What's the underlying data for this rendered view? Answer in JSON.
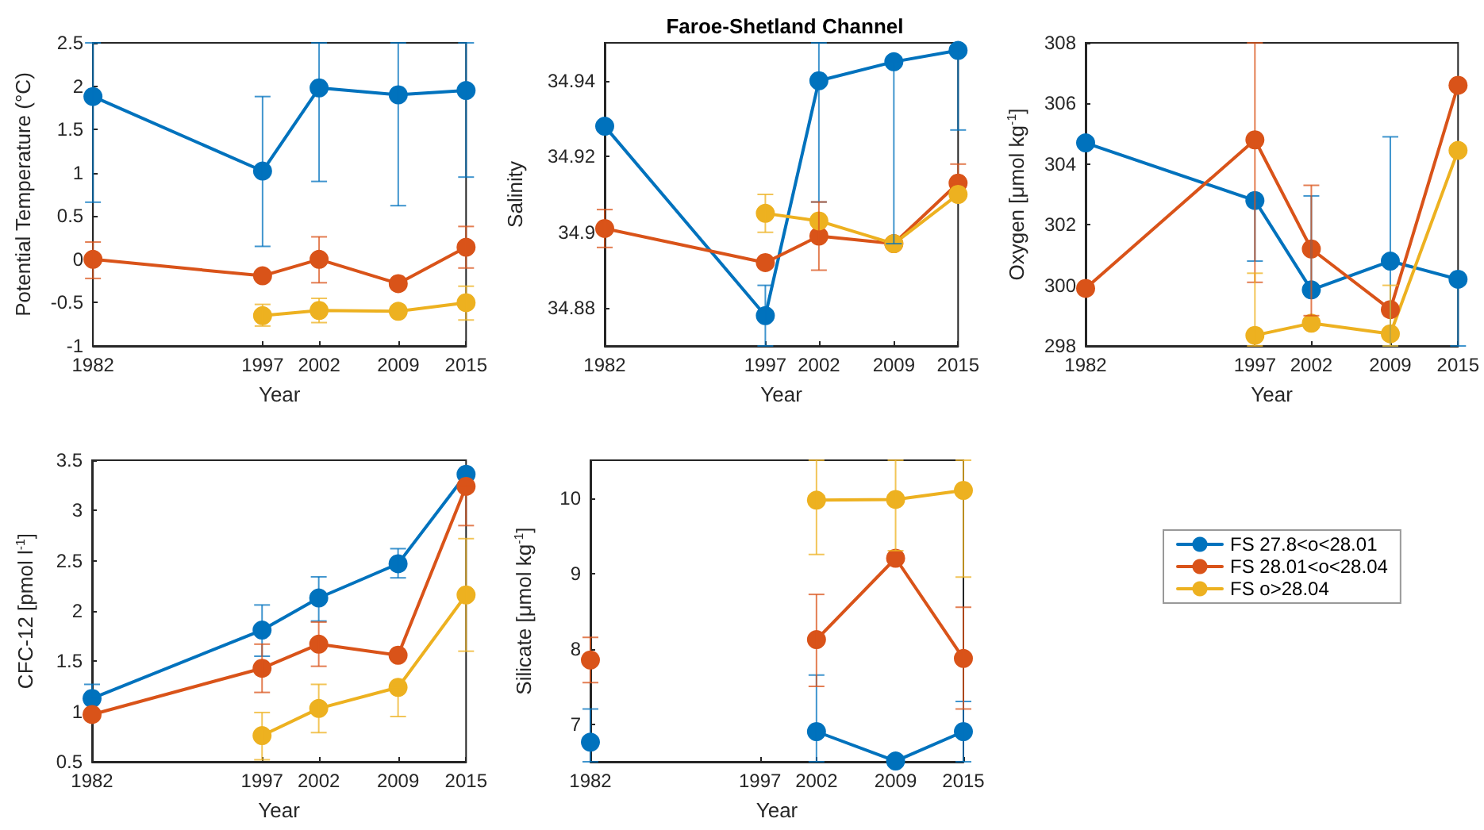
{
  "chart_data": [
    {
      "type": "line",
      "xlabel": "Year",
      "ylabel": "Potential Temperature (°C)",
      "x": [
        1982,
        1997,
        2002,
        2009,
        2015
      ],
      "xlim": [
        1982,
        2015
      ],
      "xticks": [
        1982,
        1997,
        2002,
        2009,
        2015
      ],
      "ylim": [
        -1,
        2.5
      ],
      "yticks": [
        -1,
        -0.5,
        0,
        0.5,
        1,
        1.5,
        2,
        2.5
      ],
      "marker": "circle",
      "line_style": "solid",
      "series": [
        {
          "color": "#0072bd",
          "values": [
            1.88,
            1.02,
            1.98,
            1.9,
            1.95
          ],
          "errors": [
            [
              0.66,
              2.5
            ],
            [
              0.15,
              1.88
            ],
            [
              0.9,
              2.5
            ],
            [
              0.62,
              2.5
            ],
            [
              0.95,
              2.5
            ]
          ]
        },
        {
          "color": "#d95319",
          "values": [
            0.0,
            -0.19,
            0.0,
            -0.28,
            0.14
          ],
          "errors": [
            [
              -0.22,
              0.2
            ],
            null,
            [
              -0.27,
              0.26
            ],
            null,
            [
              -0.1,
              0.38
            ]
          ]
        },
        {
          "color": "#edb120",
          "values": [
            null,
            -0.65,
            -0.59,
            -0.6,
            -0.5
          ],
          "errors": [
            null,
            [
              -0.77,
              -0.52
            ],
            [
              -0.73,
              -0.45
            ],
            null,
            [
              -0.7,
              -0.31
            ]
          ]
        }
      ]
    },
    {
      "type": "line",
      "title": "Faroe-Shetland Channel",
      "xlabel": "Year",
      "ylabel": "Salinity",
      "x": [
        1982,
        1997,
        2002,
        2009,
        2015
      ],
      "xlim": [
        1982,
        2015
      ],
      "xticks": [
        1982,
        1997,
        2002,
        2009,
        2015
      ],
      "ylim": [
        34.87,
        34.95
      ],
      "yticks": [
        34.88,
        34.9,
        34.92,
        34.94
      ],
      "marker": "circle",
      "line_style": "solid",
      "series": [
        {
          "color": "#0072bd",
          "values": [
            34.928,
            34.878,
            34.94,
            34.945,
            34.948
          ],
          "errors": [
            null,
            [
              34.87,
              34.886
            ],
            [
              34.908,
              34.95
            ],
            [
              34.897,
              34.945
            ],
            [
              34.927,
              34.948
            ]
          ]
        },
        {
          "color": "#d95319",
          "values": [
            34.901,
            34.892,
            34.899,
            34.897,
            34.913
          ],
          "errors": [
            [
              34.896,
              34.906
            ],
            null,
            [
              34.89,
              34.908
            ],
            null,
            [
              34.913,
              34.918
            ]
          ]
        },
        {
          "color": "#edb120",
          "values": [
            null,
            34.905,
            34.903,
            34.897,
            34.91
          ],
          "errors": [
            null,
            [
              34.9,
              34.91
            ],
            null,
            null,
            null
          ]
        }
      ]
    },
    {
      "type": "line",
      "xlabel": "Year",
      "ylabel": "Oxygen [μmol kg$^{-1}$]",
      "x": [
        1982,
        1997,
        2002,
        2009,
        2015
      ],
      "xlim": [
        1982,
        2015
      ],
      "xticks": [
        1982,
        1997,
        2002,
        2009,
        2015
      ],
      "ylim": [
        298,
        308
      ],
      "yticks": [
        298,
        300,
        302,
        304,
        306,
        308
      ],
      "marker": "circle",
      "line_style": "solid",
      "series": [
        {
          "color": "#0072bd",
          "values": [
            304.7,
            302.8,
            299.85,
            300.8,
            300.2
          ],
          "errors": [
            null,
            [
              300.8,
              302.8
            ],
            [
              299.85,
              302.95
            ],
            [
              298,
              304.9
            ],
            [
              298,
              300.2
            ]
          ]
        },
        {
          "color": "#d95319",
          "values": [
            299.9,
            304.8,
            301.2,
            299.2,
            306.6
          ],
          "errors": [
            null,
            [
              300.1,
              308
            ],
            [
              299,
              303.3
            ],
            null,
            null
          ]
        },
        {
          "color": "#edb120",
          "values": [
            null,
            298.35,
            298.75,
            298.4,
            304.45
          ],
          "errors": [
            null,
            [
              298,
              300.4
            ],
            null,
            [
              298,
              300
            ],
            null
          ]
        }
      ]
    },
    {
      "type": "line",
      "xlabel": "Year",
      "ylabel": "CFC-12 [pmol l$^{-1}$]",
      "x": [
        1982,
        1997,
        2002,
        2009,
        2015
      ],
      "xlim": [
        1982,
        2015
      ],
      "xticks": [
        1982,
        1997,
        2002,
        2009,
        2015
      ],
      "ylim": [
        0.5,
        3.5
      ],
      "yticks": [
        0.5,
        1,
        1.5,
        2,
        2.5,
        3,
        3.5
      ],
      "marker": "circle",
      "line_style": "solid",
      "series": [
        {
          "color": "#0072bd",
          "values": [
            1.13,
            1.81,
            2.13,
            2.47,
            3.36
          ],
          "errors": [
            [
              1.13,
              1.27
            ],
            [
              1.55,
              2.06
            ],
            [
              1.9,
              2.34
            ],
            [
              2.33,
              2.62
            ],
            null
          ]
        },
        {
          "color": "#d95319",
          "values": [
            0.97,
            1.43,
            1.67,
            1.56,
            3.24
          ],
          "errors": [
            null,
            [
              1.19,
              1.67
            ],
            [
              1.45,
              1.89
            ],
            null,
            [
              2.85,
              3.24
            ]
          ]
        },
        {
          "color": "#edb120",
          "values": [
            null,
            0.76,
            1.03,
            1.24,
            2.16
          ],
          "errors": [
            null,
            [
              0.52,
              0.99
            ],
            [
              0.79,
              1.27
            ],
            [
              0.95,
              1.24
            ],
            [
              1.6,
              2.72
            ]
          ]
        }
      ]
    },
    {
      "type": "line",
      "xlabel": "Year",
      "ylabel": "Silicate [μmol kg$^{-1}$]",
      "x": [
        1982,
        1997,
        2002,
        2009,
        2015
      ],
      "xlim": [
        1982,
        2015
      ],
      "xticks": [
        1982,
        1997,
        2002,
        2009,
        2015
      ],
      "ylim": [
        6.5,
        10.5
      ],
      "yticks": [
        7,
        8,
        9,
        10
      ],
      "marker": "circle",
      "line_style": "solid",
      "legend": "right",
      "series": [
        {
          "name": "FS 27.8<o<28.01",
          "color": "#0072bd",
          "values": [
            6.76,
            null,
            6.9,
            6.51,
            6.9
          ],
          "errors": [
            [
              6.5,
              7.2
            ],
            null,
            [
              6.5,
              7.65
            ],
            null,
            [
              6.5,
              7.3
            ]
          ]
        },
        {
          "name": "FS 28.01<o<28.04",
          "color": "#d95319",
          "values": [
            7.85,
            null,
            8.12,
            9.2,
            7.87
          ],
          "errors": [
            [
              7.55,
              8.15
            ],
            null,
            [
              7.5,
              8.72
            ],
            null,
            [
              7.2,
              8.55
            ]
          ]
        },
        {
          "name": "FS o>28.04",
          "color": "#edb120",
          "values": [
            null,
            null,
            9.97,
            9.98,
            10.1
          ],
          "errors": [
            null,
            null,
            [
              9.25,
              10.5
            ],
            [
              9.3,
              10.5
            ],
            [
              8.95,
              10.5
            ]
          ]
        }
      ]
    }
  ]
}
